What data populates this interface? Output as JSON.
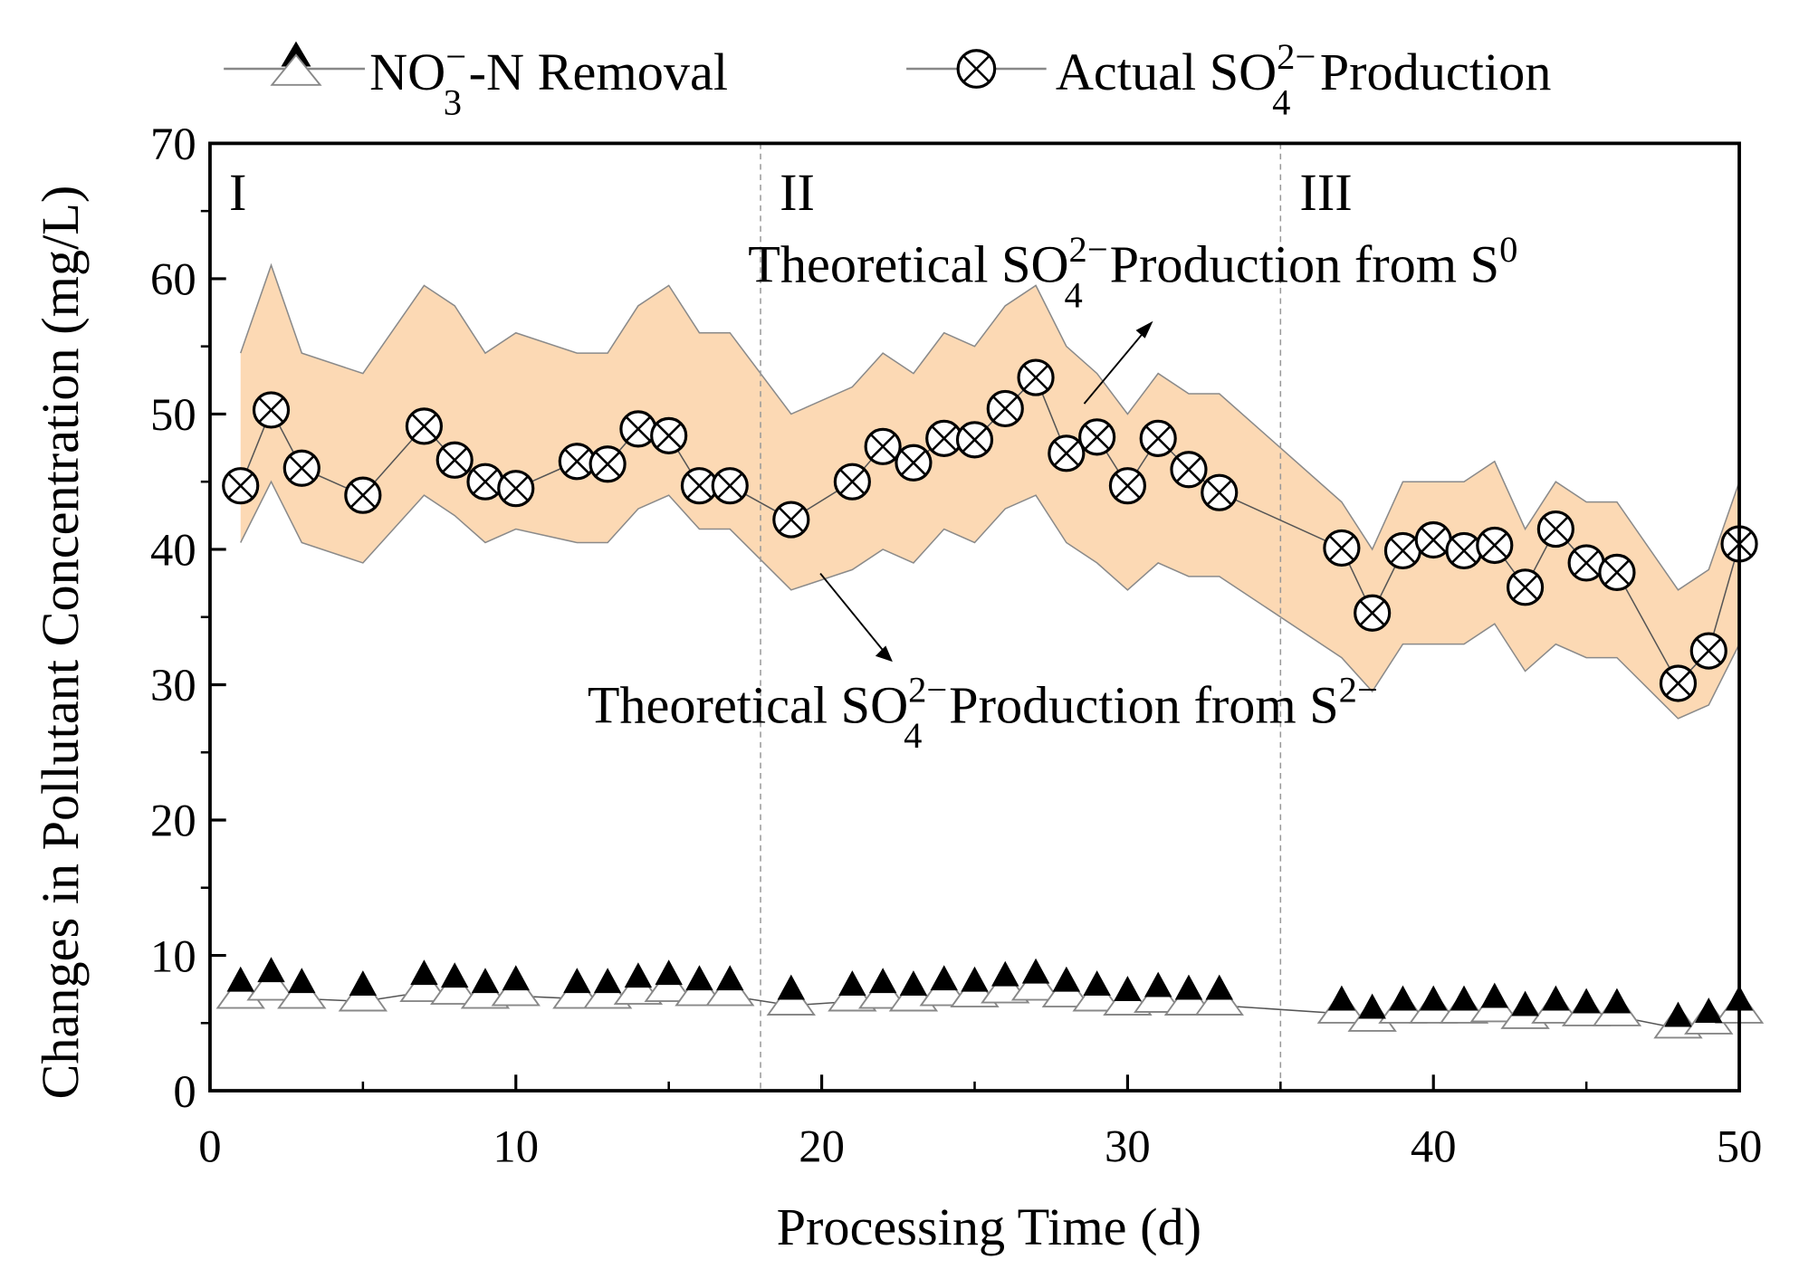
{
  "chart_data": {
    "type": "line",
    "title": "",
    "xlabel": "Processing Time  (d)",
    "ylabel": "Changes in Pollutant Concentration (mg/L)",
    "xlim": [
      0,
      50
    ],
    "ylim": [
      0,
      70
    ],
    "xticks": [
      "0",
      "10",
      "20",
      "30",
      "40",
      "50"
    ],
    "yticks": [
      "0",
      "10",
      "20",
      "30",
      "40",
      "50",
      "60",
      "70"
    ],
    "grid": false,
    "legend_position": "top",
    "stage_dividers": [
      18,
      35
    ],
    "stages": [
      {
        "label": "I",
        "x": 1
      },
      {
        "label": "II",
        "x": 19
      },
      {
        "label": "III",
        "x": 36
      }
    ],
    "legend": {
      "no3": {
        "pre": "NO",
        "sub": "3",
        "sup": "−",
        "post": "-N Removal"
      },
      "so4": {
        "pre": "Actual SO",
        "sub": "4",
        "sup": "2−",
        "post": " Production"
      }
    },
    "annotations": {
      "upper": {
        "pre": "Theoretical SO",
        "sub": "4",
        "sup": "2−",
        "mid": " Production from S",
        "sup2": "0"
      },
      "lower": {
        "pre": "Theoretical SO",
        "sub": "4",
        "sup": "2−",
        "mid": " Production from S",
        "sup2": "2−"
      }
    },
    "x": [
      1,
      2,
      3,
      5,
      7,
      8,
      9,
      10,
      12,
      13,
      14,
      15,
      16,
      17,
      19,
      21,
      22,
      23,
      24,
      25,
      26,
      27,
      28,
      29,
      30,
      31,
      32,
      33,
      37,
      38,
      39,
      40,
      41,
      42,
      43,
      44,
      45,
      46,
      48,
      49,
      50
    ],
    "series": [
      {
        "name": "Actual SO4 2- Production",
        "values": [
          44.7,
          50.3,
          46.0,
          44.0,
          49.1,
          46.6,
          45.0,
          44.5,
          46.5,
          46.3,
          48.9,
          48.4,
          44.7,
          44.7,
          42.2,
          45.0,
          47.6,
          46.4,
          48.2,
          48.1,
          50.4,
          52.7,
          47.1,
          48.3,
          44.7,
          48.2,
          45.9,
          44.2,
          40.1,
          35.3,
          39.9,
          40.7,
          39.9,
          40.3,
          37.2,
          41.5,
          39.0,
          38.3,
          30.1,
          32.5,
          40.4
        ]
      },
      {
        "name": "Theoretical SO4 2- Production from S0",
        "values": [
          54.5,
          61,
          54.5,
          53,
          59.5,
          58,
          54.5,
          56,
          54.5,
          54.5,
          58,
          59.5,
          56,
          56,
          50,
          52,
          54.5,
          53,
          56,
          55,
          58,
          59.5,
          55,
          53,
          50,
          53,
          51.5,
          51.5,
          43.5,
          40,
          45,
          45,
          45,
          46.5,
          41.5,
          45,
          43.5,
          43.5,
          37,
          38.5,
          45
        ]
      },
      {
        "name": "Theoretical SO4 2- Production from S2-",
        "values": [
          40.5,
          45,
          40.5,
          39,
          44,
          42.5,
          40.5,
          41.5,
          40.5,
          40.5,
          43,
          44,
          41.5,
          41.5,
          37,
          38.5,
          40,
          39,
          41.5,
          40.5,
          43,
          44,
          40.5,
          39,
          37,
          39,
          38,
          38,
          32,
          29.5,
          33,
          33,
          33,
          34.5,
          31,
          33,
          32,
          32,
          27.5,
          28.5,
          33
        ]
      },
      {
        "name": "NO3- -N Removal (filled)",
        "values": [
          8.0,
          8.7,
          7.9,
          7.7,
          8.5,
          8.3,
          7.9,
          8.1,
          7.9,
          7.9,
          8.3,
          8.5,
          8.1,
          8.1,
          7.4,
          7.7,
          7.9,
          7.7,
          8.1,
          8.0,
          8.4,
          8.6,
          8.0,
          7.7,
          7.3,
          7.6,
          7.4,
          7.4,
          6.6,
          6.0,
          6.6,
          6.6,
          6.6,
          6.8,
          6.2,
          6.6,
          6.4,
          6.4,
          5.4,
          5.7,
          6.6
        ]
      },
      {
        "name": "NO3- -N Removal (open)",
        "values": [
          6.8,
          7.4,
          6.8,
          6.6,
          7.3,
          7.1,
          6.8,
          7.0,
          6.8,
          6.8,
          7.1,
          7.3,
          7.0,
          7.0,
          6.3,
          6.6,
          6.8,
          6.6,
          7.0,
          6.9,
          7.2,
          7.4,
          6.9,
          6.6,
          6.3,
          6.5,
          6.3,
          6.3,
          5.7,
          5.1,
          5.7,
          5.7,
          5.7,
          5.8,
          5.3,
          5.7,
          5.5,
          5.5,
          4.6,
          4.9,
          5.7
        ]
      }
    ],
    "colors": {
      "band": "#fcd9b4",
      "band_edge": "#8a8a8a",
      "line": "#555555"
    }
  }
}
